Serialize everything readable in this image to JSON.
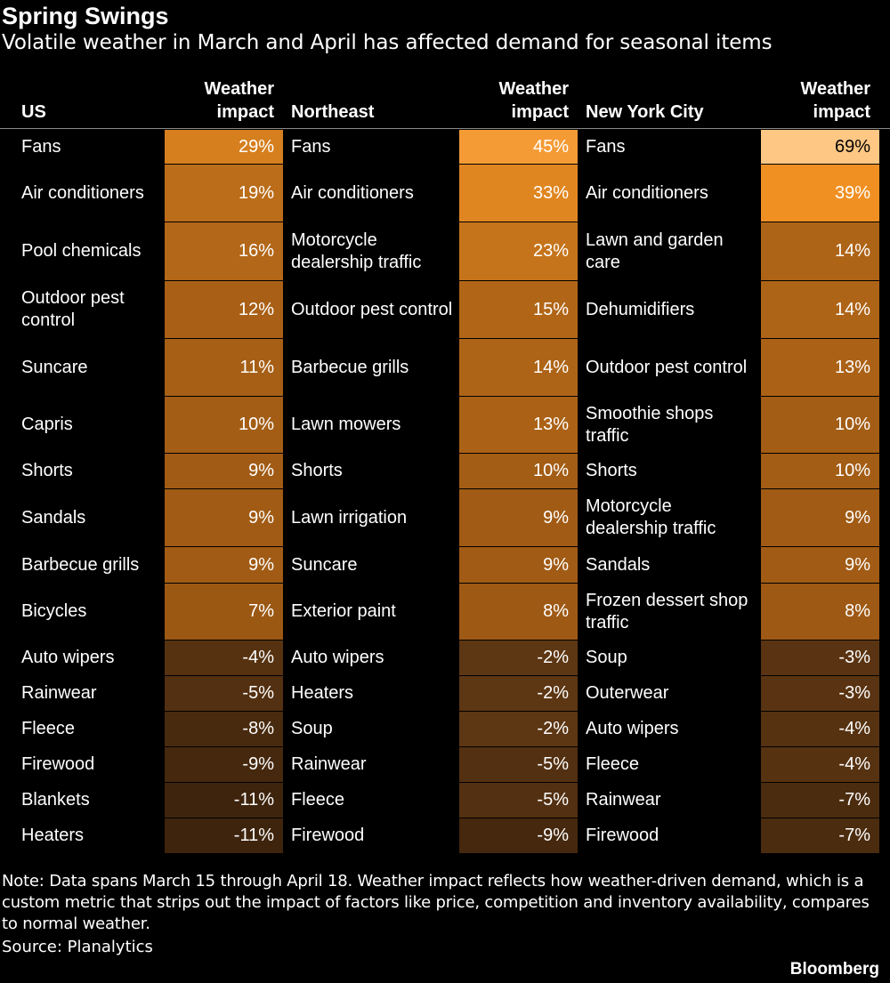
{
  "header": {
    "title": "Spring Swings",
    "subtitle": "Volatile weather in March and April has affected demand for seasonal items"
  },
  "colors": {
    "background": "#000000",
    "text": "#ffffff",
    "scale_high": "#ffc784",
    "scale_mid": "#f39224",
    "scale_low": "#3a220c"
  },
  "chart_data": {
    "type": "table",
    "value_column_label": "Weather impact",
    "unit": "%",
    "regions": [
      {
        "name": "US",
        "value_label": [
          "Weather",
          "impact"
        ],
        "rows": [
          {
            "item": "Fans",
            "value": 29
          },
          {
            "item": "Air conditioners",
            "value": 19
          },
          {
            "item": "Pool chemicals",
            "value": 16
          },
          {
            "item": "Outdoor pest control",
            "value": 12
          },
          {
            "item": "Suncare",
            "value": 11
          },
          {
            "item": "Capris",
            "value": 10
          },
          {
            "item": "Shorts",
            "value": 9
          },
          {
            "item": "Sandals",
            "value": 9
          },
          {
            "item": "Barbecue grills",
            "value": 9
          },
          {
            "item": "Bicycles",
            "value": 7
          },
          {
            "item": "Auto wipers",
            "value": -4
          },
          {
            "item": "Rainwear",
            "value": -5
          },
          {
            "item": "Fleece",
            "value": -8
          },
          {
            "item": "Firewood",
            "value": -9
          },
          {
            "item": "Blankets",
            "value": -11
          },
          {
            "item": "Heaters",
            "value": -11
          }
        ]
      },
      {
        "name": "Northeast",
        "value_label": [
          "Weather",
          "impact"
        ],
        "rows": [
          {
            "item": "Fans",
            "value": 45
          },
          {
            "item": "Air conditioners",
            "value": 33
          },
          {
            "item": "Motorcycle dealership traffic",
            "value": 23
          },
          {
            "item": "Outdoor pest control",
            "value": 15
          },
          {
            "item": "Barbecue grills",
            "value": 14
          },
          {
            "item": "Lawn mowers",
            "value": 13
          },
          {
            "item": "Shorts",
            "value": 10
          },
          {
            "item": "Lawn irrigation",
            "value": 9
          },
          {
            "item": "Suncare",
            "value": 9
          },
          {
            "item": "Exterior paint",
            "value": 8
          },
          {
            "item": "Auto wipers",
            "value": -2
          },
          {
            "item": "Heaters",
            "value": -2
          },
          {
            "item": "Soup",
            "value": -2
          },
          {
            "item": "Rainwear",
            "value": -5
          },
          {
            "item": "Fleece",
            "value": -5
          },
          {
            "item": "Firewood",
            "value": -9
          }
        ]
      },
      {
        "name": "New York City",
        "value_label": [
          "Weather",
          "impact"
        ],
        "rows": [
          {
            "item": "Fans",
            "value": 69
          },
          {
            "item": "Air conditioners",
            "value": 39
          },
          {
            "item": "Lawn and garden care",
            "value": 14
          },
          {
            "item": "Dehumidifiers",
            "value": 14
          },
          {
            "item": "Outdoor pest control",
            "value": 13
          },
          {
            "item": "Smoothie shops traffic",
            "value": 10
          },
          {
            "item": "Shorts",
            "value": 10
          },
          {
            "item": "Motorcycle dealership traffic",
            "value": 9
          },
          {
            "item": "Sandals",
            "value": 9
          },
          {
            "item": "Frozen dessert shop traffic",
            "value": 8
          },
          {
            "item": "Soup",
            "value": -3
          },
          {
            "item": "Outerwear",
            "value": -3
          },
          {
            "item": "Auto wipers",
            "value": -4
          },
          {
            "item": "Fleece",
            "value": -4
          },
          {
            "item": "Rainwear",
            "value": -7
          },
          {
            "item": "Firewood",
            "value": -7
          }
        ]
      }
    ]
  },
  "footer": {
    "note": "Note: Data spans March 15 through April 18. Weather impact reflects how weather-driven demand, which is a custom metric that strips out the impact of factors like price, competition and inventory availability, compares to normal weather.",
    "source": "Source: Planalytics",
    "brand": "Bloomberg"
  }
}
